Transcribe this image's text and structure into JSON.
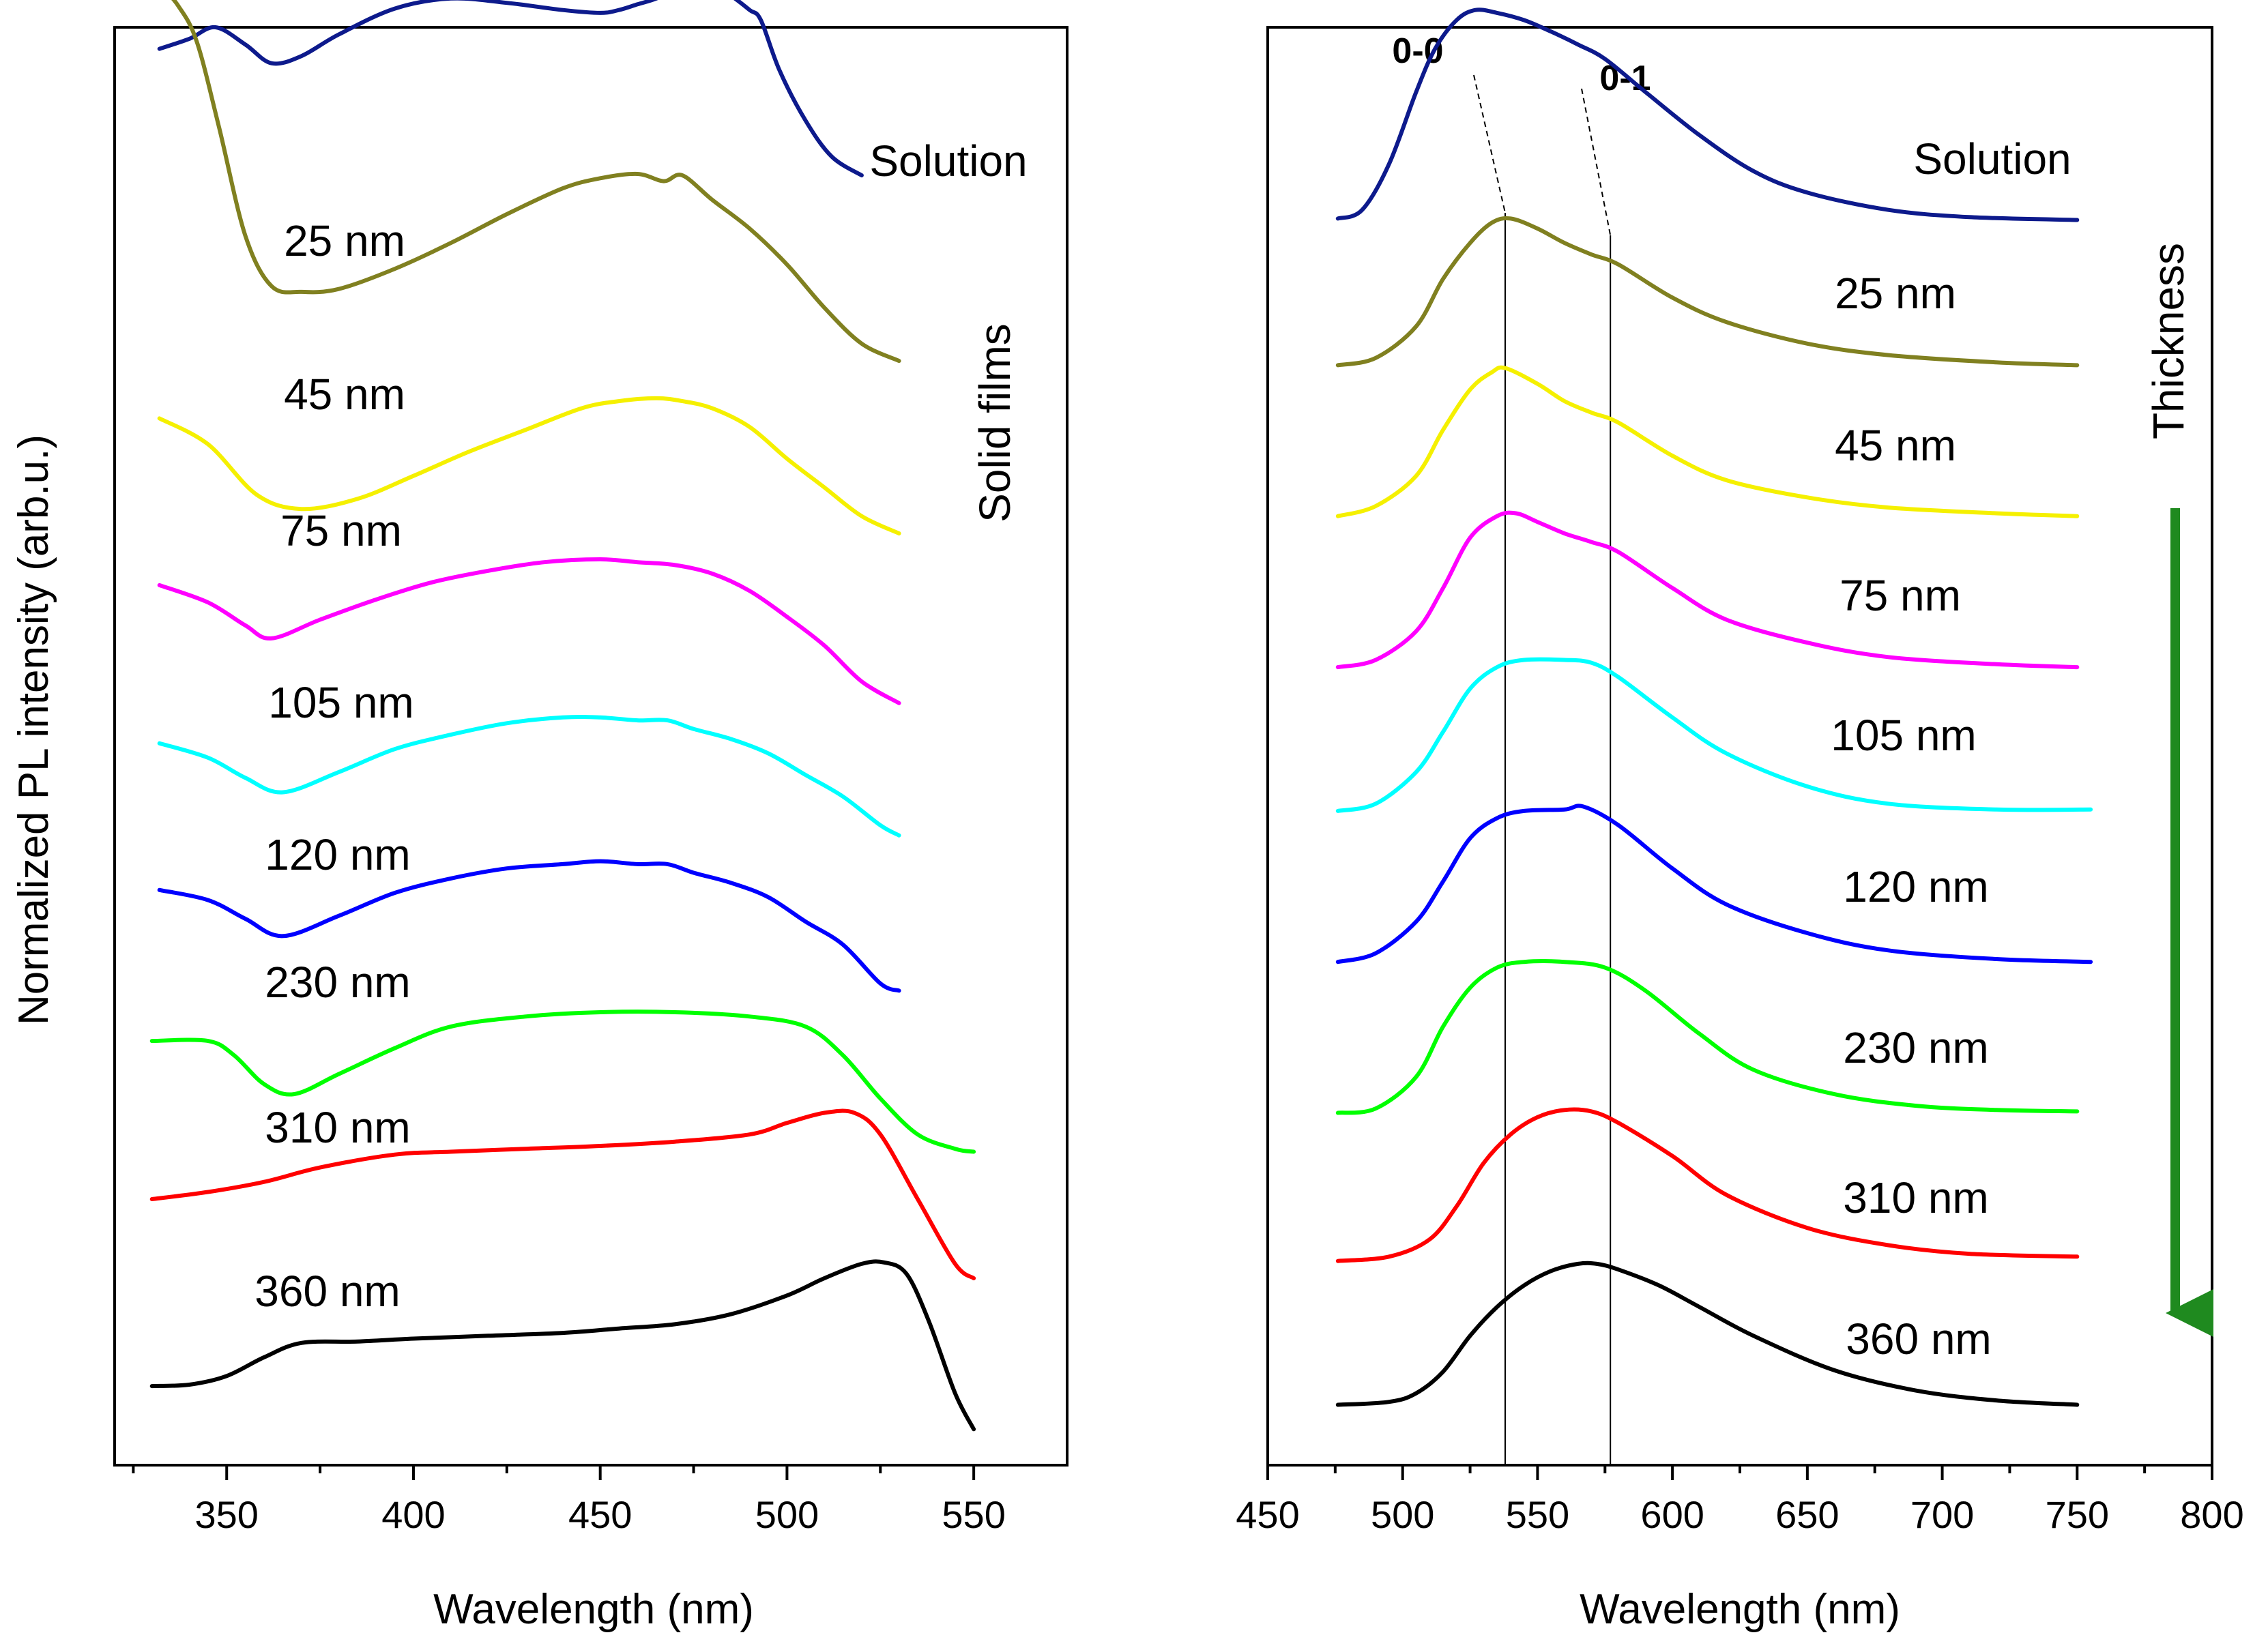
{
  "figure": {
    "ylabel": "Normalized PL intensity (arb.u.)",
    "colors": {
      "Solution": "#0d1a8c",
      "25 nm": "#808020",
      "45 nm": "#f5f000",
      "75 nm": "#ff00ff",
      "105 nm": "#00ffff",
      "120 nm": "#0000ff",
      "230 nm": "#00ff00",
      "310 nm": "#ff0000",
      "360 nm": "#000000"
    }
  },
  "chart_data": [
    {
      "type": "line",
      "panel": "left",
      "title": "",
      "xlabel": "Wavelength (nm)",
      "ylabel": "Normalized PL intensity (arb.u.)",
      "xlim": [
        320,
        575
      ],
      "xticks": [
        350,
        400,
        450,
        500,
        550
      ],
      "xtick_labels": [
        "350",
        "400",
        "450",
        "500",
        "550"
      ],
      "ylim": [
        0,
        10
      ],
      "side_label": "Solid films",
      "series": [
        {
          "name": "Solution",
          "label": "Solution",
          "x": [
            332,
            340,
            347,
            355,
            362,
            370,
            380,
            395,
            410,
            425,
            440,
            450,
            455,
            460,
            465,
            470,
            475,
            480,
            485,
            490,
            493,
            498,
            505,
            512,
            520
          ],
          "y": [
            9.85,
            9.92,
            10.0,
            9.88,
            9.75,
            9.8,
            9.95,
            10.13,
            10.2,
            10.17,
            10.12,
            10.1,
            10.12,
            10.16,
            10.2,
            10.26,
            10.23,
            10.3,
            10.22,
            10.12,
            10.05,
            9.7,
            9.35,
            9.1,
            8.97
          ]
        },
        {
          "name": "25 nm",
          "label": "25 nm",
          "x": [
            332,
            337,
            342,
            348,
            355,
            362,
            370,
            380,
            395,
            410,
            425,
            440,
            450,
            460,
            467,
            472,
            480,
            490,
            500,
            510,
            520,
            530
          ],
          "y": [
            10.3,
            10.15,
            9.9,
            9.3,
            8.55,
            8.2,
            8.16,
            8.18,
            8.32,
            8.5,
            8.7,
            8.88,
            8.95,
            8.98,
            8.93,
            8.97,
            8.8,
            8.6,
            8.35,
            8.05,
            7.8,
            7.68
          ]
        },
        {
          "name": "45 nm",
          "label": "45 nm",
          "x": [
            332,
            345,
            358,
            370,
            385,
            400,
            415,
            430,
            445,
            455,
            465,
            472,
            480,
            490,
            500,
            510,
            520,
            530
          ],
          "y": [
            7.28,
            7.1,
            6.75,
            6.65,
            6.72,
            6.88,
            7.05,
            7.2,
            7.35,
            7.4,
            7.42,
            7.4,
            7.35,
            7.22,
            7.0,
            6.8,
            6.6,
            6.48
          ]
        },
        {
          "name": "75 nm",
          "label": "75 nm",
          "x": [
            332,
            345,
            355,
            362,
            375,
            390,
            405,
            420,
            435,
            450,
            460,
            470,
            480,
            490,
            500,
            510,
            520,
            530
          ],
          "y": [
            6.12,
            6.0,
            5.84,
            5.75,
            5.88,
            6.02,
            6.14,
            6.22,
            6.28,
            6.3,
            6.28,
            6.26,
            6.2,
            6.08,
            5.9,
            5.7,
            5.45,
            5.3
          ]
        },
        {
          "name": "105 nm",
          "label": "105 nm",
          "x": [
            332,
            345,
            355,
            365,
            380,
            395,
            410,
            425,
            440,
            450,
            460,
            468,
            475,
            485,
            495,
            505,
            515,
            525,
            530
          ],
          "y": [
            5.02,
            4.92,
            4.78,
            4.68,
            4.82,
            4.98,
            5.08,
            5.16,
            5.2,
            5.2,
            5.18,
            5.18,
            5.12,
            5.05,
            4.95,
            4.8,
            4.65,
            4.45,
            4.38
          ]
        },
        {
          "name": "120 nm",
          "label": "120 nm",
          "x": [
            332,
            345,
            355,
            365,
            380,
            395,
            410,
            425,
            440,
            450,
            460,
            468,
            475,
            485,
            495,
            505,
            515,
            525,
            530
          ],
          "y": [
            4.0,
            3.93,
            3.8,
            3.68,
            3.82,
            3.98,
            4.08,
            4.15,
            4.18,
            4.2,
            4.18,
            4.18,
            4.12,
            4.05,
            3.95,
            3.78,
            3.62,
            3.35,
            3.3
          ]
        },
        {
          "name": "230 nm",
          "label": "230 nm",
          "x": [
            330,
            345,
            352,
            360,
            368,
            380,
            395,
            410,
            430,
            450,
            470,
            490,
            505,
            515,
            525,
            535,
            545,
            550
          ],
          "y": [
            2.95,
            2.95,
            2.85,
            2.65,
            2.58,
            2.72,
            2.9,
            3.05,
            3.12,
            3.15,
            3.15,
            3.12,
            3.05,
            2.85,
            2.55,
            2.3,
            2.2,
            2.18
          ]
        },
        {
          "name": "310 nm",
          "label": "310 nm",
          "x": [
            330,
            345,
            360,
            375,
            395,
            410,
            430,
            450,
            470,
            490,
            500,
            510,
            518,
            525,
            535,
            545,
            550
          ],
          "y": [
            1.85,
            1.9,
            1.97,
            2.07,
            2.16,
            2.18,
            2.2,
            2.22,
            2.25,
            2.3,
            2.38,
            2.45,
            2.45,
            2.3,
            1.85,
            1.4,
            1.3
          ]
        },
        {
          "name": "360 nm",
          "label": "360 nm",
          "x": [
            330,
            340,
            350,
            360,
            370,
            385,
            400,
            420,
            440,
            455,
            470,
            485,
            500,
            510,
            520,
            526,
            532,
            538,
            545,
            550
          ],
          "y": [
            0.55,
            0.56,
            0.62,
            0.75,
            0.85,
            0.86,
            0.88,
            0.9,
            0.92,
            0.95,
            0.98,
            1.05,
            1.18,
            1.3,
            1.4,
            1.41,
            1.33,
            1.0,
            0.5,
            0.25
          ]
        }
      ]
    },
    {
      "type": "line",
      "panel": "right",
      "title": "",
      "xlabel": "Wavelength (nm)",
      "ylabel": "",
      "xlim": [
        450,
        800
      ],
      "xticks": [
        450,
        500,
        550,
        600,
        650,
        700,
        750,
        800
      ],
      "xtick_labels": [
        "450",
        "500",
        "550",
        "600",
        "650",
        "700",
        "750",
        "800"
      ],
      "ylim": [
        0,
        10
      ],
      "arrow_label": "Thickness",
      "peak_labels": [
        {
          "text": "0-0",
          "x": 538
        },
        {
          "text": "0-1",
          "x": 577
        }
      ],
      "series": [
        {
          "name": "Solution",
          "label": "Solution",
          "x": [
            476,
            485,
            495,
            505,
            512,
            520,
            527,
            535,
            545,
            555,
            565,
            575,
            590,
            610,
            630,
            650,
            680,
            710,
            750
          ],
          "y": [
            8.67,
            8.73,
            9.05,
            9.55,
            9.85,
            10.05,
            10.12,
            10.1,
            10.05,
            9.97,
            9.88,
            9.78,
            9.55,
            9.25,
            9.0,
            8.85,
            8.73,
            8.68,
            8.66
          ]
        },
        {
          "name": "25 nm",
          "label": "25 nm",
          "x": [
            476,
            490,
            505,
            515,
            525,
            533,
            540,
            550,
            560,
            570,
            580,
            600,
            620,
            650,
            680,
            720,
            750
          ],
          "y": [
            7.65,
            7.7,
            7.92,
            8.25,
            8.5,
            8.64,
            8.67,
            8.6,
            8.5,
            8.42,
            8.35,
            8.12,
            7.95,
            7.8,
            7.72,
            7.67,
            7.65
          ]
        },
        {
          "name": "45 nm",
          "label": "45 nm",
          "x": [
            476,
            490,
            505,
            515,
            525,
            533,
            538,
            550,
            560,
            570,
            580,
            600,
            620,
            650,
            680,
            720,
            750
          ],
          "y": [
            6.6,
            6.67,
            6.88,
            7.2,
            7.48,
            7.6,
            7.63,
            7.52,
            7.4,
            7.32,
            7.25,
            7.02,
            6.85,
            6.73,
            6.66,
            6.62,
            6.6
          ]
        },
        {
          "name": "75 nm",
          "label": "75 nm",
          "x": [
            476,
            490,
            505,
            515,
            525,
            535,
            542,
            550,
            560,
            570,
            580,
            600,
            620,
            650,
            680,
            720,
            750
          ],
          "y": [
            5.55,
            5.6,
            5.8,
            6.1,
            6.45,
            6.6,
            6.62,
            6.56,
            6.48,
            6.42,
            6.35,
            6.1,
            5.88,
            5.72,
            5.62,
            5.57,
            5.55
          ]
        },
        {
          "name": "105 nm",
          "label": "105 nm",
          "x": [
            476,
            490,
            505,
            515,
            525,
            535,
            545,
            560,
            570,
            580,
            600,
            620,
            650,
            680,
            720,
            755
          ],
          "y": [
            4.55,
            4.6,
            4.82,
            5.1,
            5.4,
            5.55,
            5.6,
            5.6,
            5.58,
            5.48,
            5.2,
            4.95,
            4.72,
            4.6,
            4.56,
            4.56
          ]
        },
        {
          "name": "120 nm",
          "label": "120 nm",
          "x": [
            476,
            490,
            505,
            515,
            525,
            535,
            545,
            560,
            567,
            580,
            600,
            620,
            650,
            680,
            720,
            755
          ],
          "y": [
            3.5,
            3.56,
            3.78,
            4.06,
            4.36,
            4.5,
            4.55,
            4.56,
            4.58,
            4.45,
            4.15,
            3.9,
            3.7,
            3.58,
            3.52,
            3.5
          ]
        },
        {
          "name": "230 nm",
          "label": "230 nm",
          "x": [
            476,
            490,
            505,
            515,
            525,
            535,
            545,
            560,
            575,
            590,
            610,
            630,
            660,
            690,
            720,
            750
          ],
          "y": [
            2.45,
            2.48,
            2.7,
            3.05,
            3.32,
            3.46,
            3.5,
            3.5,
            3.46,
            3.3,
            3.0,
            2.75,
            2.58,
            2.5,
            2.47,
            2.46
          ]
        },
        {
          "name": "310 nm",
          "label": "310 nm",
          "x": [
            476,
            495,
            510,
            520,
            530,
            540,
            550,
            560,
            570,
            580,
            600,
            620,
            650,
            680,
            710,
            750
          ],
          "y": [
            1.42,
            1.45,
            1.57,
            1.8,
            2.1,
            2.3,
            2.42,
            2.47,
            2.46,
            2.38,
            2.15,
            1.88,
            1.65,
            1.53,
            1.47,
            1.45
          ]
        },
        {
          "name": "360 nm",
          "label": "360 nm",
          "x": [
            476,
            495,
            505,
            515,
            525,
            535,
            545,
            555,
            565,
            572,
            580,
            595,
            610,
            630,
            660,
            690,
            720,
            750
          ],
          "y": [
            0.42,
            0.44,
            0.5,
            0.65,
            0.9,
            1.1,
            1.25,
            1.35,
            1.4,
            1.4,
            1.36,
            1.25,
            1.1,
            0.9,
            0.66,
            0.52,
            0.45,
            0.42
          ]
        }
      ]
    }
  ]
}
